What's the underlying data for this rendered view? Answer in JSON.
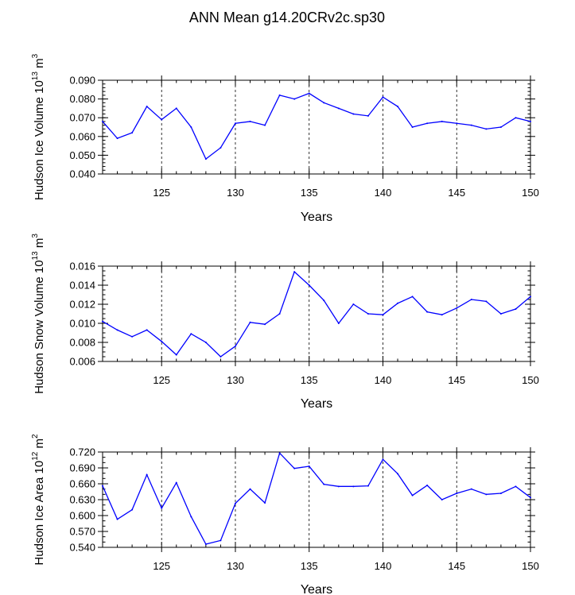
{
  "title": "ANN Mean g14.20CRv2c.sp30",
  "chart_data": [
    {
      "type": "line",
      "name": "ice-volume",
      "ylabel_main": "Hudson Ice Volume 10",
      "ylabel_exp": "13",
      "ylabel_unit": " m",
      "ylabel_unit_exp": "3",
      "xlabel": "Years",
      "xlim": [
        121,
        150
      ],
      "ylim": [
        0.04,
        0.09
      ],
      "xticks": [
        125,
        130,
        135,
        140,
        145,
        150
      ],
      "yticks": [
        0.04,
        0.05,
        0.06,
        0.07,
        0.08,
        0.09
      ],
      "ytick_labels": [
        "0.040",
        "0.050",
        "0.060",
        "0.070",
        "0.080",
        "0.090"
      ],
      "ytick_minor_step": 0.002,
      "line_color": "#0000ff",
      "x": [
        121,
        122,
        123,
        124,
        125,
        126,
        127,
        128,
        129,
        130,
        131,
        132,
        133,
        134,
        135,
        136,
        137,
        138,
        139,
        140,
        141,
        142,
        143,
        144,
        145,
        146,
        147,
        148,
        149,
        150
      ],
      "values": [
        0.068,
        0.059,
        0.062,
        0.076,
        0.069,
        0.075,
        0.065,
        0.048,
        0.054,
        0.067,
        0.068,
        0.066,
        0.082,
        0.08,
        0.083,
        0.078,
        0.075,
        0.072,
        0.071,
        0.081,
        0.076,
        0.065,
        0.067,
        0.068,
        0.067,
        0.066,
        0.064,
        0.065,
        0.07,
        0.068
      ]
    },
    {
      "type": "line",
      "name": "snow-volume",
      "ylabel_main": "Hudson Snow Volume 10",
      "ylabel_exp": "13",
      "ylabel_unit": " m",
      "ylabel_unit_exp": "3",
      "xlabel": "Years",
      "xlim": [
        121,
        150
      ],
      "ylim": [
        0.006,
        0.016
      ],
      "xticks": [
        125,
        130,
        135,
        140,
        145,
        150
      ],
      "yticks": [
        0.006,
        0.008,
        0.01,
        0.012,
        0.014,
        0.016
      ],
      "ytick_labels": [
        "0.006",
        "0.008",
        "0.010",
        "0.012",
        "0.014",
        "0.016"
      ],
      "ytick_minor_step": 0.0005,
      "line_color": "#0000ff",
      "x": [
        121,
        122,
        123,
        124,
        125,
        126,
        127,
        128,
        129,
        130,
        131,
        132,
        133,
        134,
        135,
        136,
        137,
        138,
        139,
        140,
        141,
        142,
        143,
        144,
        145,
        146,
        147,
        148,
        149,
        150
      ],
      "values": [
        0.0102,
        0.0093,
        0.0086,
        0.0093,
        0.0081,
        0.0067,
        0.0089,
        0.008,
        0.0065,
        0.0076,
        0.0101,
        0.0099,
        0.011,
        0.0154,
        0.014,
        0.0124,
        0.01,
        0.012,
        0.011,
        0.0109,
        0.0121,
        0.0128,
        0.0112,
        0.0109,
        0.0116,
        0.0125,
        0.0123,
        0.011,
        0.0115,
        0.0128
      ]
    },
    {
      "type": "line",
      "name": "ice-area",
      "ylabel_main": "Hudson Ice Area 10",
      "ylabel_exp": "12",
      "ylabel_unit": " m",
      "ylabel_unit_exp": "2",
      "xlabel": "Years",
      "xlim": [
        121,
        150
      ],
      "ylim": [
        0.54,
        0.72
      ],
      "xticks": [
        125,
        130,
        135,
        140,
        145,
        150
      ],
      "yticks": [
        0.54,
        0.57,
        0.6,
        0.63,
        0.66,
        0.69,
        0.72
      ],
      "ytick_labels": [
        "0.540",
        "0.570",
        "0.600",
        "0.630",
        "0.660",
        "0.690",
        "0.720"
      ],
      "ytick_minor_step": 0.01,
      "line_color": "#0000ff",
      "x": [
        121,
        122,
        123,
        124,
        125,
        126,
        127,
        128,
        129,
        130,
        131,
        132,
        133,
        134,
        135,
        136,
        137,
        138,
        139,
        140,
        141,
        142,
        143,
        144,
        145,
        146,
        147,
        148,
        149,
        150
      ],
      "values": [
        0.656,
        0.593,
        0.611,
        0.677,
        0.614,
        0.662,
        0.598,
        0.546,
        0.553,
        0.623,
        0.65,
        0.624,
        0.718,
        0.689,
        0.693,
        0.659,
        0.655,
        0.655,
        0.656,
        0.706,
        0.679,
        0.638,
        0.657,
        0.63,
        0.642,
        0.65,
        0.64,
        0.642,
        0.655,
        0.634
      ]
    }
  ]
}
